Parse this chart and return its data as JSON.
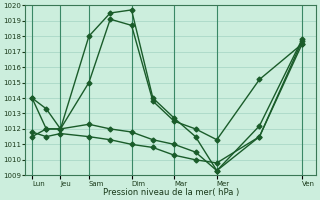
{
  "xlabel": "Pression niveau de la mer( hPa )",
  "background_color": "#cceedd",
  "grid_color": "#99ccbb",
  "line_color": "#1a5c2a",
  "ylim": [
    1009,
    1020
  ],
  "yticks": [
    1009,
    1010,
    1011,
    1012,
    1013,
    1014,
    1015,
    1016,
    1017,
    1018,
    1019,
    1020
  ],
  "x_labels": [
    "Lun",
    "Jeu",
    "Sam",
    "Dim",
    "Mar",
    "Mer",
    "Ven"
  ],
  "x_positions": [
    0,
    2,
    4,
    7,
    10,
    13,
    19
  ],
  "xlim": [
    -0.5,
    20
  ],
  "major_vlines": [
    0,
    2,
    4,
    7,
    10,
    13,
    19
  ],
  "series1_x": [
    0,
    1,
    2,
    4,
    5.5,
    7,
    8.5,
    10,
    11.5,
    13,
    16,
    19
  ],
  "series1_y": [
    1014.0,
    1013.3,
    1012.0,
    1018.0,
    1019.5,
    1019.7,
    1014.0,
    1012.7,
    1011.5,
    1009.3,
    1012.2,
    1017.8
  ],
  "series2_x": [
    0,
    1,
    2,
    4,
    5.5,
    7,
    8.5,
    10,
    11.5,
    13,
    16,
    19
  ],
  "series2_y": [
    1014.0,
    1012.0,
    1012.0,
    1015.0,
    1019.1,
    1018.7,
    1013.8,
    1012.5,
    1012.0,
    1011.3,
    1015.2,
    1017.5
  ],
  "series3_x": [
    0,
    1,
    2,
    4,
    5.5,
    7,
    8.5,
    10,
    11.5,
    13,
    16,
    19
  ],
  "series3_y": [
    1011.5,
    1012.0,
    1012.0,
    1012.3,
    1012.0,
    1011.8,
    1011.3,
    1011.0,
    1010.5,
    1009.3,
    1011.5,
    1017.7
  ],
  "series4_x": [
    0,
    1,
    2,
    4,
    5.5,
    7,
    8.5,
    10,
    11.5,
    13,
    16,
    19
  ],
  "series4_y": [
    1011.8,
    1011.5,
    1011.7,
    1011.5,
    1011.3,
    1011.0,
    1010.8,
    1010.3,
    1010.0,
    1009.8,
    1011.5,
    1017.5
  ],
  "marker": "D",
  "marker_size": 2.5,
  "linewidth": 1.0,
  "figsize": [
    3.2,
    2.0
  ],
  "dpi": 100
}
